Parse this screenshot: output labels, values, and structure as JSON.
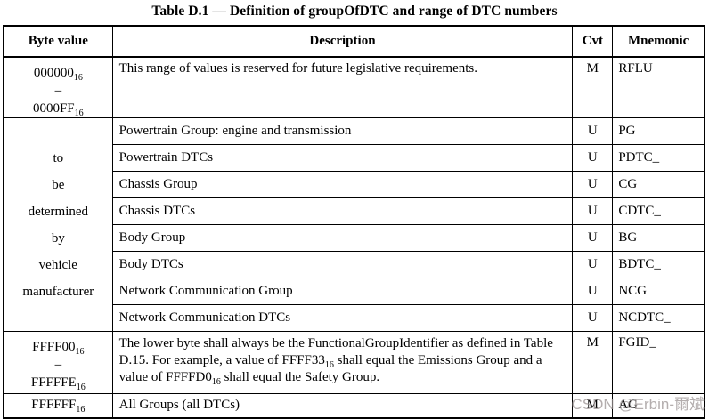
{
  "title": "Table D.1 — Definition of groupOfDTC and range of DTC numbers",
  "watermark": "CSDN @Erbin-爾斌",
  "table": {
    "headers": [
      "Byte value",
      "Description",
      "Cvt",
      "Mnemonic"
    ],
    "rows": [
      {
        "byte_lines": [
          "000000_{16}",
          "–",
          "0000FF_{16}"
        ],
        "byte_rowspan": 1,
        "byte_style": "range",
        "description": "This range of values is reserved for future legislative requirements.",
        "cvt": "M",
        "mnemonic": "RFLU"
      },
      {
        "byte_lines": [
          "to",
          "be",
          "determined",
          "by",
          "vehicle",
          "manufacturer"
        ],
        "byte_rowspan": 8,
        "byte_style": "merged",
        "description": "Powertrain Group: engine and transmission",
        "cvt": "U",
        "mnemonic": "PG"
      },
      {
        "description": "Powertrain DTCs",
        "cvt": "U",
        "mnemonic": "PDTC_"
      },
      {
        "description": "Chassis Group",
        "cvt": "U",
        "mnemonic": "CG"
      },
      {
        "description": "Chassis DTCs",
        "cvt": "U",
        "mnemonic": "CDTC_"
      },
      {
        "description": "Body Group",
        "cvt": "U",
        "mnemonic": "BG"
      },
      {
        "description": "Body DTCs",
        "cvt": "U",
        "mnemonic": "BDTC_"
      },
      {
        "description": "Network Communication Group",
        "cvt": "U",
        "mnemonic": "NCG"
      },
      {
        "description": "Network Communication DTCs",
        "cvt": "U",
        "mnemonic": "NCDTC_"
      },
      {
        "byte_lines": [
          "FFFF00_{16}",
          "–",
          "FFFFFE_{16}"
        ],
        "byte_rowspan": 1,
        "byte_style": "range",
        "description": "The lower byte shall always be the FunctionalGroupIdentifier as defined in Table D.15. For example, a value of FFFF33_{16} shall equal the Emissions Group and a value of FFFFD0_{16} shall equal the Safety Group.",
        "cvt": "M",
        "mnemonic": "FGID_"
      },
      {
        "byte_lines": [
          "FFFFFF_{16}"
        ],
        "byte_rowspan": 1,
        "byte_style": "single",
        "description": "All Groups (all DTCs)",
        "cvt": "M",
        "mnemonic": "AG"
      }
    ]
  }
}
